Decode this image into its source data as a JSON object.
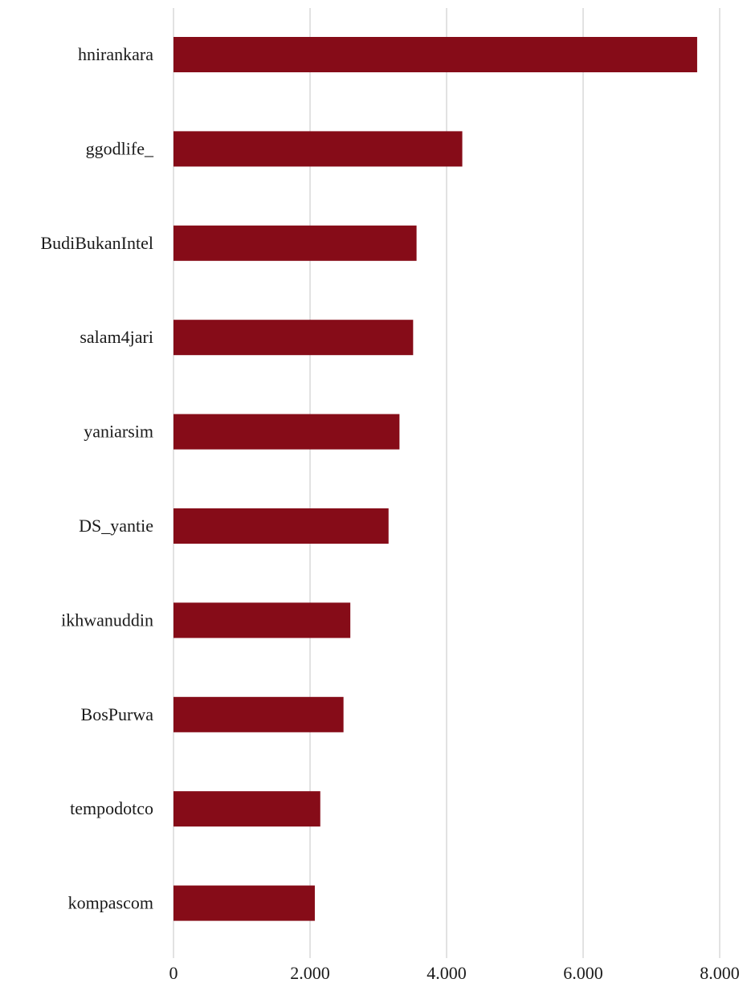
{
  "chart_data": {
    "type": "bar",
    "orientation": "horizontal",
    "categories": [
      "hnirankara",
      "ggodlife_",
      "BudiBukanIntel",
      "salam4jari",
      "yaniarsim",
      "DS_yantie",
      "ikhwanuddin",
      "BosPurwa",
      "tempodotco",
      "kompascom"
    ],
    "values": [
      7670,
      4230,
      3560,
      3510,
      3310,
      3150,
      2590,
      2490,
      2150,
      2070
    ],
    "xlim": [
      0,
      8000
    ],
    "xticks": [
      0,
      2000,
      4000,
      6000,
      8000
    ],
    "xtick_labels": [
      "0",
      "2.000",
      "4.000",
      "6.000",
      "8.000"
    ],
    "grid": "vertical",
    "legend": "none",
    "bar_color": "#860c18",
    "title": "",
    "xlabel": "",
    "ylabel": ""
  }
}
